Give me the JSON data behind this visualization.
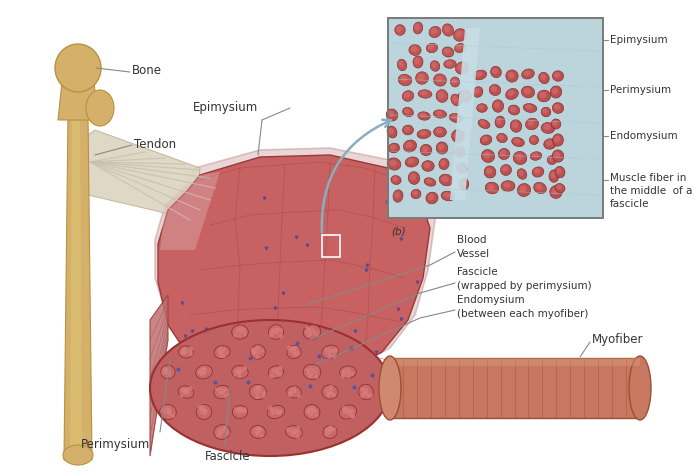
{
  "background_color": "#ffffff",
  "labels": {
    "bone": "Bone",
    "tendon": "Tendon",
    "epimysium_top": "Epimysium",
    "perimysium_bottom": "Perimysium",
    "fascicle_bottom": "Fascicle",
    "blood_vessel": "Blood\nVessel",
    "fascicle_mid": "Fascicle\n(wrapped by perimysium)",
    "endomysium_mid": "Endomysium\n(between each myofiber)",
    "myofiber": "Myofiber",
    "b_label": "(b)",
    "epimysium_right": "Epimysium",
    "perimysium_right": "Perimysium",
    "endomysium_right": "Endomysium",
    "muscle_fiber_right": "Muscle fiber in\nthe middle  of a\nfascicle"
  },
  "bone_color": "#d4b06a",
  "bone_edge": "#b8923e",
  "tendon_color": "#e8ddd0",
  "muscle_color": "#c86060",
  "muscle_edge": "#9a3a3a",
  "micro_bg": "#c8dde5",
  "label_color": "#333333",
  "line_color": "#888888",
  "font_size": 8.5,
  "font_size_s": 7.5
}
